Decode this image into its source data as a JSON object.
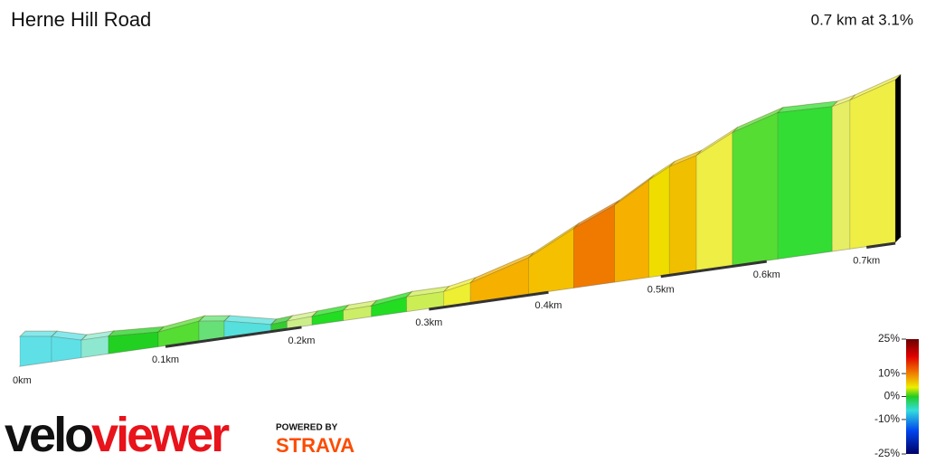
{
  "chart_data": {
    "type": "elevation-profile",
    "title": "Herne Hill Road",
    "subtitle": "0.7 km at 3.1%",
    "distance": [
      0,
      0.0212,
      0.0414,
      0.06,
      0.0949,
      0.124,
      0.1424,
      0.177,
      0.189,
      0.208,
      0.232,
      0.254,
      0.282,
      0.312,
      0.334,
      0.383,
      0.422,
      0.458,
      0.489,
      0.508,
      0.533,
      0.567,
      0.611,
      0.665,
      0.683,
      0.73
    ],
    "elevation": [
      17.3,
      16.5,
      15.1,
      15.1,
      14.6,
      15.5,
      14.9,
      13.1,
      13.3,
      13.5,
      13.8,
      13.9,
      14.6,
      14.6,
      15.5,
      18.5,
      22.6,
      25.7,
      29.3,
      31.2,
      32.5,
      35.7,
      38.1,
      37.8,
      38.5,
      41.0
    ],
    "segment_colors": [
      "#5ee0e6",
      "#5ee0e6",
      "#8ee8d0",
      "#22d022",
      "#55dd33",
      "#66e077",
      "#55e0dd",
      "#33cc33",
      "#ccee88",
      "#22dd22",
      "#ccee66",
      "#22dd22",
      "#ccee55",
      "#eeee33",
      "#f5b000",
      "#f5c000",
      "#f07a00",
      "#f5b000",
      "#f0dd00",
      "#f0c000",
      "#eeee44",
      "#55dd33",
      "#33dd33",
      "#e6ee66",
      "#eeee44"
    ],
    "xticks": [
      {
        "value": 0,
        "label": "0km"
      },
      {
        "value": 0.1,
        "label": "0.1km"
      },
      {
        "value": 0.2,
        "label": "0.2km"
      },
      {
        "value": 0.3,
        "label": "0.3km"
      },
      {
        "value": 0.4,
        "label": "0.4km"
      },
      {
        "value": 0.5,
        "label": "0.5km"
      },
      {
        "value": 0.6,
        "label": "0.6km"
      },
      {
        "value": 0.7,
        "label": "0.7km"
      }
    ],
    "colorlim": [
      -25,
      25
    ],
    "colorticks": [
      {
        "value": 25,
        "label": "25%"
      },
      {
        "value": 10,
        "label": "10%"
      },
      {
        "value": 0,
        "label": "0%"
      },
      {
        "value": -10,
        "label": "-10%"
      },
      {
        "value": -25,
        "label": "-25%"
      }
    ]
  },
  "brand": {
    "velo": "velo",
    "viewer": "viewer",
    "powered": "POWERED BY",
    "strava": "STRAVA"
  }
}
